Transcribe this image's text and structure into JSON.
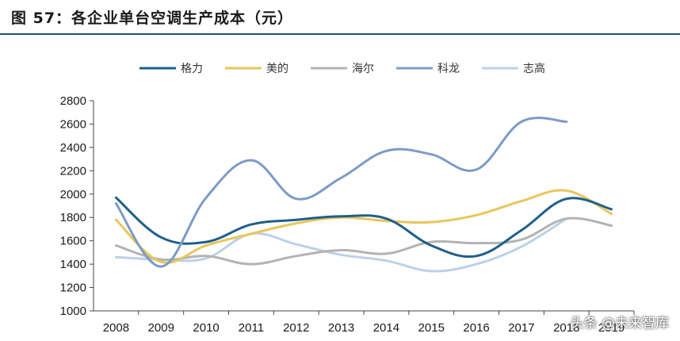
{
  "title": "图 57：各企业单台空调生产成本（元）",
  "watermark": "头条 @未来智库",
  "chart_data": {
    "type": "line",
    "title": "",
    "xlabel": "",
    "ylabel": "",
    "categories": [
      "2008",
      "2009",
      "2010",
      "2011",
      "2012",
      "2013",
      "2014",
      "2015",
      "2016",
      "2017",
      "2018",
      "2019"
    ],
    "ylim": [
      1000,
      2800
    ],
    "yticks": [
      1000,
      1200,
      1400,
      1600,
      1800,
      2000,
      2200,
      2400,
      2600,
      2800
    ],
    "legend_position": "top",
    "grid": false,
    "series": [
      {
        "name": "格力",
        "color": "#1f5f8b",
        "values": [
          1970,
          1630,
          1590,
          1740,
          1780,
          1810,
          1790,
          1560,
          1470,
          1690,
          1960,
          1870
        ]
      },
      {
        "name": "美的",
        "color": "#e8c65a",
        "values": [
          1780,
          1420,
          1560,
          1660,
          1750,
          1800,
          1770,
          1760,
          1820,
          1940,
          2030,
          1830
        ]
      },
      {
        "name": "海尔",
        "color": "#b3b3b3",
        "values": [
          1560,
          1440,
          1470,
          1400,
          1470,
          1520,
          1490,
          1590,
          1580,
          1610,
          1790,
          1730
        ]
      },
      {
        "name": "科龙",
        "color": "#7d9bc6",
        "values": [
          1920,
          1380,
          1970,
          2290,
          1960,
          2140,
          2370,
          2340,
          2210,
          2620,
          2620,
          null
        ]
      },
      {
        "name": "志高",
        "color": "#bcd1e6",
        "values": [
          1460,
          1440,
          1450,
          1660,
          1570,
          1480,
          1430,
          1340,
          1400,
          1550,
          1790,
          null
        ]
      }
    ]
  }
}
